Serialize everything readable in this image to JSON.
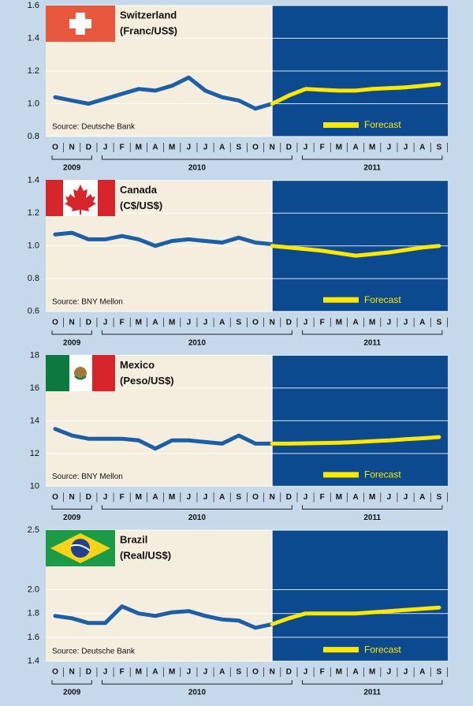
{
  "chart_data": [
    {
      "type": "line",
      "title": "Switzerland",
      "subtitle": "(Franc/US$)",
      "source": "Source: Deutsche Bank",
      "categories": [
        "O",
        "N",
        "D",
        "J",
        "F",
        "M",
        "A",
        "M",
        "J",
        "J",
        "A",
        "S",
        "O",
        "N",
        "D",
        "J",
        "F",
        "M",
        "A",
        "M",
        "J",
        "J",
        "A",
        "S"
      ],
      "years": [
        "2009",
        "2010",
        "2011"
      ],
      "ylim": [
        0.8,
        1.6
      ],
      "yticks": [
        0.8,
        {
          "value": 1,
          "label": "1.0"
        },
        1.2,
        1.4,
        1.6
      ],
      "grid": true,
      "legend": "lower-right",
      "series": [
        {
          "color": "#1d5fa6",
          "values": [
            1.04,
            1.02,
            1.0,
            1.03,
            1.06,
            1.09,
            1.08,
            1.11,
            1.16,
            1.08,
            1.04,
            1.02,
            0.97,
            1.0,
            null,
            null,
            null,
            null,
            null,
            null,
            null,
            null,
            null,
            null
          ]
        },
        {
          "name": "Forecast",
          "color": "#ffe800",
          "values": [
            null,
            null,
            null,
            null,
            null,
            null,
            null,
            null,
            null,
            null,
            null,
            null,
            null,
            1.0,
            1.05,
            1.09,
            1.085,
            1.08,
            1.08,
            1.09,
            1.095,
            1.1,
            1.11,
            1.12
          ]
        }
      ]
    },
    {
      "type": "line",
      "title": "Canada",
      "subtitle": "(C$/US$)",
      "source": "Source: BNY Mellon",
      "categories": [
        "O",
        "N",
        "D",
        "J",
        "F",
        "M",
        "A",
        "M",
        "J",
        "J",
        "A",
        "S",
        "O",
        "N",
        "D",
        "J",
        "F",
        "M",
        "A",
        "M",
        "J",
        "J",
        "A",
        "S"
      ],
      "years": [
        "2009",
        "2010",
        "2011"
      ],
      "ylim": [
        0.6,
        1.4
      ],
      "yticks": [
        0.6,
        0.8,
        {
          "value": 1,
          "label": "1.0"
        },
        1.2,
        1.4
      ],
      "grid": true,
      "legend": "lower-right",
      "series": [
        {
          "color": "#1d5fa6",
          "values": [
            1.07,
            1.08,
            1.04,
            1.04,
            1.06,
            1.04,
            1.0,
            1.03,
            1.04,
            1.03,
            1.02,
            1.05,
            1.02,
            1.01,
            null,
            null,
            null,
            null,
            null,
            null,
            null,
            null,
            null,
            null
          ]
        },
        {
          "name": "Forecast",
          "color": "#ffe800",
          "values": [
            null,
            null,
            null,
            null,
            null,
            null,
            null,
            null,
            null,
            null,
            null,
            null,
            null,
            1.0,
            0.99,
            0.98,
            0.97,
            0.955,
            0.94,
            0.95,
            0.96,
            0.975,
            0.99,
            1.0
          ]
        }
      ]
    },
    {
      "type": "line",
      "title": "Mexico",
      "subtitle": "(Peso/US$)",
      "source": "Source: BNY Mellon",
      "categories": [
        "O",
        "N",
        "D",
        "J",
        "F",
        "M",
        "A",
        "M",
        "J",
        "J",
        "A",
        "S",
        "O",
        "N",
        "D",
        "J",
        "F",
        "M",
        "A",
        "M",
        "J",
        "J",
        "A",
        "S"
      ],
      "years": [
        "2009",
        "2010",
        "2011"
      ],
      "ylim": [
        10,
        18
      ],
      "yticks": [
        10,
        12,
        14,
        16,
        18
      ],
      "grid": true,
      "legend": "lower-right",
      "series": [
        {
          "color": "#1d5fa6",
          "values": [
            13.5,
            13.1,
            12.9,
            12.9,
            12.9,
            12.8,
            12.3,
            12.8,
            12.8,
            12.7,
            12.6,
            13.1,
            12.6,
            12.6,
            null,
            null,
            null,
            null,
            null,
            null,
            null,
            null,
            null,
            null
          ]
        },
        {
          "name": "Forecast",
          "color": "#ffe800",
          "values": [
            null,
            null,
            null,
            null,
            null,
            null,
            null,
            null,
            null,
            null,
            null,
            null,
            null,
            12.6,
            12.6,
            12.62,
            12.64,
            12.66,
            12.7,
            12.75,
            12.8,
            12.87,
            12.93,
            13.0
          ]
        }
      ]
    },
    {
      "type": "line",
      "title": "Brazil",
      "subtitle": "(Real/US$)",
      "source": "Source: Deutsche Bank",
      "categories": [
        "O",
        "N",
        "D",
        "J",
        "F",
        "M",
        "A",
        "M",
        "J",
        "J",
        "A",
        "S",
        "O",
        "N",
        "D",
        "J",
        "F",
        "M",
        "A",
        "M",
        "J",
        "J",
        "A",
        "S"
      ],
      "years": [
        "2009",
        "2010",
        "2011"
      ],
      "ylim": [
        1.4,
        2.5
      ],
      "yticks": [
        1.4,
        1.6,
        1.8,
        {
          "value": 2,
          "label": "2.0"
        },
        2.5
      ],
      "grid": true,
      "legend": "lower-right",
      "series": [
        {
          "color": "#1d5fa6",
          "values": [
            1.78,
            1.76,
            1.72,
            1.72,
            1.86,
            1.8,
            1.78,
            1.81,
            1.82,
            1.78,
            1.75,
            1.74,
            1.68,
            1.71,
            null,
            null,
            null,
            null,
            null,
            null,
            null,
            null,
            null,
            null
          ]
        },
        {
          "name": "Forecast",
          "color": "#ffe800",
          "values": [
            null,
            null,
            null,
            null,
            null,
            null,
            null,
            null,
            null,
            null,
            null,
            null,
            null,
            1.71,
            1.76,
            1.8,
            1.8,
            1.8,
            1.8,
            1.81,
            1.82,
            1.83,
            1.84,
            1.85
          ]
        }
      ]
    }
  ]
}
